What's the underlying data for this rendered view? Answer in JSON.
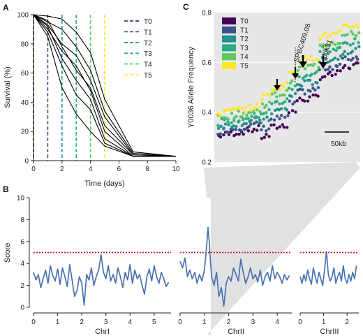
{
  "panels": {
    "a": "A",
    "b": "B",
    "c": "C"
  },
  "chart_data": [
    {
      "id": "A",
      "type": "line",
      "xlabel": "Time (days)",
      "ylabel": "Survival (%)",
      "xlim": [
        0,
        10
      ],
      "ylim": [
        0,
        100
      ],
      "xticks": [
        0,
        2,
        4,
        6,
        8,
        10
      ],
      "yticks": [
        0,
        20,
        40,
        60,
        80,
        100
      ],
      "x": [
        0,
        1,
        2,
        3,
        4,
        5,
        7,
        10
      ],
      "series": [
        {
          "values": [
            100,
            99,
            97,
            88,
            74,
            42,
            6,
            3
          ]
        },
        {
          "values": [
            100,
            95,
            90,
            78,
            62,
            34,
            5,
            3
          ]
        },
        {
          "values": [
            100,
            93,
            80,
            72,
            55,
            30,
            4,
            3
          ]
        },
        {
          "values": [
            100,
            96,
            78,
            62,
            50,
            24,
            4,
            3
          ]
        },
        {
          "values": [
            100,
            90,
            75,
            65,
            48,
            20,
            3,
            3
          ]
        },
        {
          "values": [
            100,
            92,
            70,
            55,
            42,
            15,
            3,
            3
          ]
        },
        {
          "values": [
            100,
            88,
            65,
            45,
            35,
            12,
            3,
            3
          ]
        },
        {
          "values": [
            100,
            85,
            50,
            32,
            20,
            10,
            3,
            3
          ]
        }
      ],
      "timepoints": [
        {
          "name": "T0",
          "x": 0,
          "color": "#440154"
        },
        {
          "name": "T1",
          "x": 1,
          "color": "#3b528b"
        },
        {
          "name": "T2",
          "x": 2,
          "color": "#21918c"
        },
        {
          "name": "T3",
          "x": 3,
          "color": "#28ae80"
        },
        {
          "name": "T4",
          "x": 4,
          "color": "#5ec962"
        },
        {
          "name": "T5",
          "x": 5,
          "color": "#fde725"
        }
      ],
      "legend": "top-right"
    },
    {
      "id": "B",
      "type": "line",
      "ylabel": "Score",
      "ylim": [
        0,
        10
      ],
      "yticks": [
        0,
        2,
        4,
        6,
        8,
        10
      ],
      "threshold": 5,
      "threshold_color": "#d7191c",
      "line_color": "#4a72b0",
      "highlight_x": 1.15,
      "chromosomes": [
        {
          "name": "ChrI",
          "xlim": [
            0,
            5.7
          ],
          "xticks": [
            0,
            1,
            2,
            3,
            4,
            5
          ],
          "x": [
            0.0,
            0.1,
            0.2,
            0.3,
            0.4,
            0.5,
            0.6,
            0.7,
            0.8,
            0.9,
            1.0,
            1.1,
            1.2,
            1.3,
            1.4,
            1.5,
            1.6,
            1.7,
            1.8,
            1.9,
            2.0,
            2.1,
            2.2,
            2.3,
            2.4,
            2.5,
            2.6,
            2.7,
            2.8,
            2.9,
            3.0,
            3.1,
            3.2,
            3.3,
            3.4,
            3.5,
            3.6,
            3.7,
            3.8,
            3.9,
            4.0,
            4.1,
            4.2,
            4.3,
            4.4,
            4.5,
            4.6,
            4.7,
            4.8,
            4.9,
            5.0,
            5.1,
            5.2,
            5.3,
            5.4,
            5.5,
            5.6
          ],
          "values": [
            3.2,
            2.5,
            3.0,
            1.8,
            2.6,
            3.4,
            2.2,
            3.8,
            2.9,
            2.4,
            3.5,
            2.1,
            3.6,
            2.8,
            1.9,
            3.9,
            2.5,
            1.0,
            1.5,
            2.8,
            2.2,
            0.2,
            3.0,
            2.5,
            3.6,
            2.0,
            2.8,
            3.4,
            4.8,
            3.2,
            2.6,
            3.8,
            2.4,
            3.0,
            2.2,
            3.6,
            2.8,
            1.8,
            3.2,
            2.5,
            3.9,
            2.2,
            3.4,
            2.6,
            3.0,
            2.0,
            1.2,
            2.8,
            3.5,
            2.4,
            3.8,
            2.8,
            2.2,
            3.2,
            2.6,
            1.9,
            2.3
          ]
        },
        {
          "name": "ChrII",
          "xlim": [
            0,
            4.6
          ],
          "xticks": [
            0,
            1,
            2,
            3,
            4
          ],
          "x": [
            0.0,
            0.1,
            0.2,
            0.3,
            0.4,
            0.5,
            0.6,
            0.7,
            0.8,
            0.9,
            1.0,
            1.05,
            1.1,
            1.15,
            1.2,
            1.25,
            1.3,
            1.4,
            1.5,
            1.6,
            1.7,
            1.8,
            1.9,
            2.0,
            2.1,
            2.2,
            2.3,
            2.4,
            2.5,
            2.6,
            2.7,
            2.8,
            2.9,
            3.0,
            3.1,
            3.2,
            3.3,
            3.4,
            3.5,
            3.6,
            3.7,
            3.8,
            3.9,
            4.0,
            4.1,
            4.2,
            4.3,
            4.4,
            4.5
          ],
          "values": [
            4.2,
            3.6,
            4.5,
            2.8,
            3.4,
            2.6,
            3.2,
            2.2,
            3.0,
            2.4,
            3.4,
            4.5,
            5.8,
            7.3,
            6.0,
            4.2,
            2.8,
            2.0,
            3.2,
            1.0,
            1.8,
            0.1,
            2.2,
            2.8,
            2.4,
            3.6,
            3.0,
            2.4,
            4.4,
            3.2,
            2.2,
            2.8,
            3.6,
            2.6,
            3.0,
            2.3,
            3.4,
            2.0,
            2.8,
            3.2,
            2.4,
            3.8,
            2.6,
            3.2,
            2.8,
            2.2,
            3.0,
            2.5,
            2.9
          ]
        },
        {
          "name": "ChrIII",
          "xlim": [
            0,
            2.5
          ],
          "xticks": [
            0,
            1,
            2
          ],
          "x": [
            0.0,
            0.08,
            0.16,
            0.24,
            0.32,
            0.4,
            0.48,
            0.56,
            0.64,
            0.72,
            0.8,
            0.88,
            0.96,
            1.04,
            1.12,
            1.2,
            1.28,
            1.36,
            1.44,
            1.52,
            1.6,
            1.68,
            1.76,
            1.84,
            1.92,
            2.0,
            2.08,
            2.16,
            2.24,
            2.32,
            2.4
          ],
          "values": [
            2.8,
            2.2,
            3.0,
            2.4,
            3.4,
            2.6,
            2.1,
            3.6,
            2.8,
            2.2,
            3.2,
            2.6,
            2.0,
            3.4,
            5.1,
            3.0,
            2.4,
            2.8,
            3.6,
            2.2,
            2.8,
            3.2,
            2.4,
            3.8,
            2.6,
            2.2,
            3.0,
            2.4,
            3.2,
            2.6,
            3.8
          ]
        }
      ]
    },
    {
      "id": "C",
      "type": "scatter",
      "ylabel": "Y0036 Allele Frequency",
      "ylim": [
        0.2,
        0.8
      ],
      "yticks": [
        0.2,
        0.4,
        0.6,
        0.8
      ],
      "xlim": [
        0,
        100
      ],
      "scalebar": "50kb",
      "annotations": [
        "SPBC409.08",
        "ppk31"
      ],
      "series": [
        {
          "name": "T0",
          "color": "#440154",
          "level": 0.0
        },
        {
          "name": "T1",
          "color": "#3b528b",
          "level": 0.2
        },
        {
          "name": "T2",
          "color": "#21918c",
          "level": 0.4
        },
        {
          "name": "T3",
          "color": "#28ae80",
          "level": 0.6
        },
        {
          "name": "T4",
          "color": "#5ec962",
          "level": 0.8
        },
        {
          "name": "T5",
          "color": "#fde725",
          "level": 1.0
        }
      ],
      "legend": "top-left"
    }
  ]
}
